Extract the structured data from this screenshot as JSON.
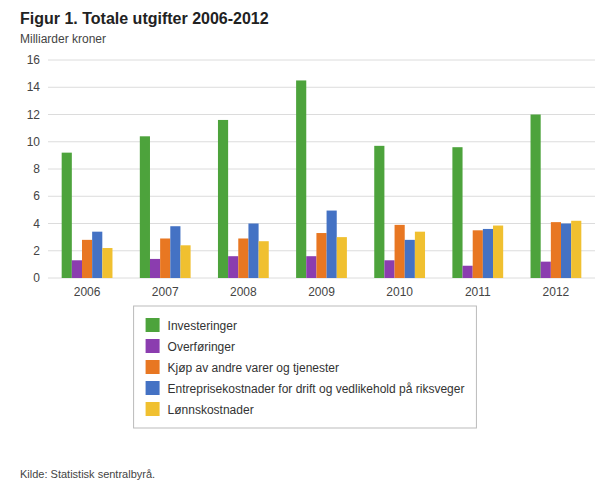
{
  "chart_data": {
    "type": "bar",
    "title": "Figur 1. Totale utgifter 2006-2012",
    "subtitle": "Milliarder kroner",
    "source": "Kilde: Statistisk sentralbyrå.",
    "categories": [
      "2006",
      "2007",
      "2008",
      "2009",
      "2010",
      "2011",
      "2012"
    ],
    "series": [
      {
        "name": "Investeringer",
        "color": "#4da33c",
        "values": [
          9.2,
          10.4,
          11.6,
          14.5,
          9.7,
          9.6,
          12.0
        ]
      },
      {
        "name": "Overføringer",
        "color": "#8B3DAF",
        "values": [
          1.3,
          1.4,
          1.6,
          1.6,
          1.3,
          0.9,
          1.2
        ]
      },
      {
        "name": "Kjøp av andre varer og tjenester",
        "color": "#E87722",
        "values": [
          2.8,
          2.9,
          2.9,
          3.3,
          3.9,
          3.5,
          4.1
        ]
      },
      {
        "name": "Entreprisekostnader for drift og vedlikehold på riksveger",
        "color": "#4472C4",
        "values": [
          3.4,
          3.8,
          4.0,
          4.95,
          2.8,
          3.6,
          4.0
        ]
      },
      {
        "name": "Lønnskostnader",
        "color": "#F0C030",
        "values": [
          2.2,
          2.4,
          2.7,
          3.0,
          3.4,
          3.85,
          4.2
        ]
      }
    ],
    "ylim": [
      0,
      16
    ],
    "yticks": [
      0,
      2,
      4,
      6,
      8,
      10,
      12,
      14,
      16
    ],
    "grid": true,
    "legend": "bottom"
  }
}
